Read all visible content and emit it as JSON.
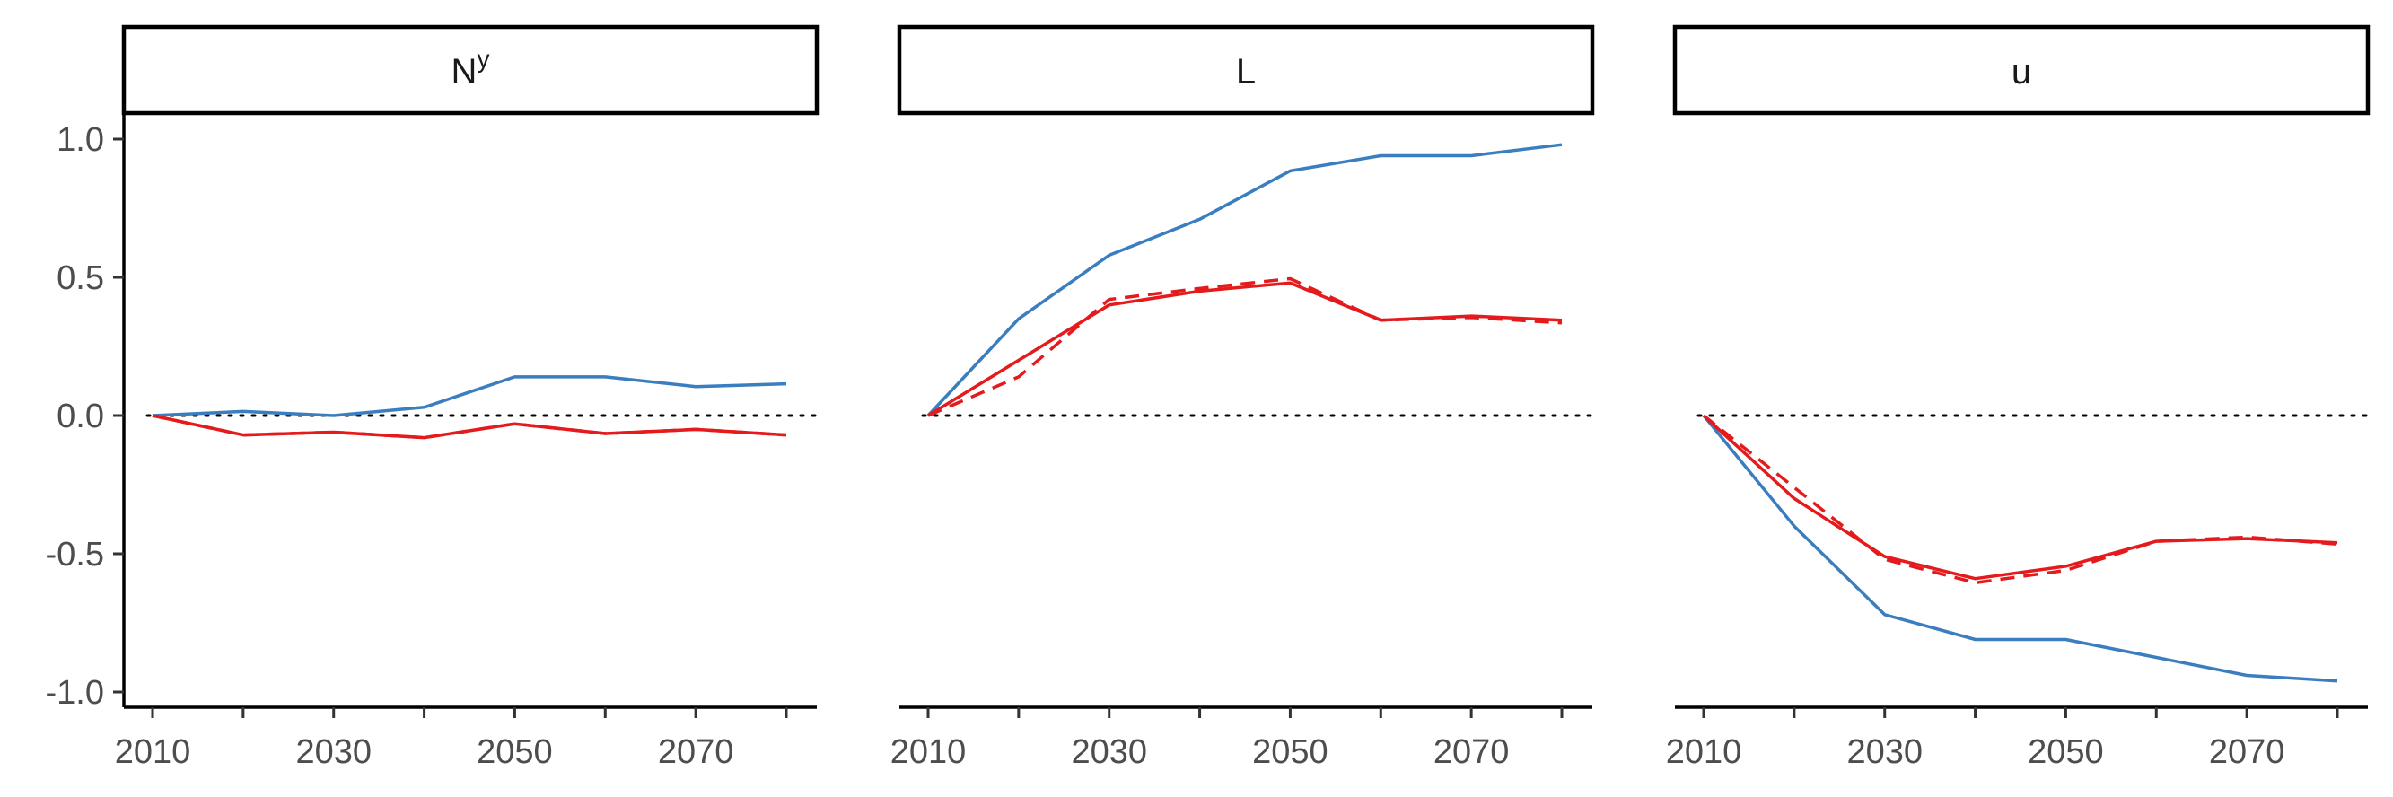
{
  "colors": {
    "blue": "#3a7ebf",
    "red": "#e41a1c"
  },
  "chart_data": {
    "type": "line",
    "title": "",
    "xlabel": "",
    "ylabel": "",
    "ylim": [
      -1.0,
      1.0
    ],
    "xlim": [
      2010,
      2080
    ],
    "y_ticks": [
      {
        "value": 1.0,
        "label": "1.0"
      },
      {
        "value": 0.5,
        "label": "0.5"
      },
      {
        "value": 0.0,
        "label": "0.0"
      },
      {
        "value": -0.5,
        "label": "-0.5"
      },
      {
        "value": -1.0,
        "label": "-1.0"
      }
    ],
    "x_ticks": [
      {
        "value": 2010,
        "label": "2010"
      },
      {
        "value": 2030,
        "label": "2030"
      },
      {
        "value": 2050,
        "label": "2050"
      },
      {
        "value": 2070,
        "label": "2070"
      }
    ],
    "x_minor_ticks": [
      2020,
      2040,
      2060,
      2080
    ],
    "reference_line": {
      "y": 0,
      "style": "dotted"
    },
    "grid": false,
    "legend": "none",
    "x": [
      2010,
      2020,
      2030,
      2040,
      2050,
      2060,
      2070,
      2080
    ],
    "panels": [
      {
        "strip": {
          "main": "N",
          "sup": "y"
        },
        "series": [
          {
            "color": "blue",
            "dash": "solid",
            "values": [
              0.0,
              0.015,
              0.0,
              0.03,
              0.14,
              0.14,
              0.105,
              0.115
            ]
          },
          {
            "color": "red",
            "dash": "solid",
            "values": [
              0.0,
              -0.07,
              -0.06,
              -0.08,
              -0.03,
              -0.065,
              -0.05,
              -0.07
            ]
          },
          {
            "color": "red",
            "dash": "dashed",
            "values": [
              0.0,
              -0.07,
              -0.06,
              -0.08,
              -0.03,
              -0.065,
              -0.05,
              -0.07
            ]
          }
        ]
      },
      {
        "strip": {
          "main": "L",
          "sup": ""
        },
        "series": [
          {
            "color": "blue",
            "dash": "solid",
            "values": [
              0.0,
              0.35,
              0.58,
              0.71,
              0.885,
              0.94,
              0.94,
              0.98
            ]
          },
          {
            "color": "red",
            "dash": "solid",
            "values": [
              0.0,
              0.2,
              0.4,
              0.45,
              0.48,
              0.345,
              0.36,
              0.345
            ]
          },
          {
            "color": "red",
            "dash": "dashed",
            "values": [
              0.0,
              0.14,
              0.42,
              0.46,
              0.495,
              0.345,
              0.355,
              0.335
            ]
          }
        ]
      },
      {
        "strip": {
          "main": "u",
          "sup": ""
        },
        "series": [
          {
            "color": "blue",
            "dash": "solid",
            "values": [
              0.0,
              -0.4,
              -0.72,
              -0.81,
              -0.81,
              -0.875,
              -0.94,
              -0.96
            ]
          },
          {
            "color": "red",
            "dash": "solid",
            "values": [
              0.0,
              -0.3,
              -0.51,
              -0.59,
              -0.545,
              -0.455,
              -0.445,
              -0.46
            ]
          },
          {
            "color": "red",
            "dash": "dashed",
            "values": [
              0.0,
              -0.26,
              -0.52,
              -0.605,
              -0.56,
              -0.455,
              -0.44,
              -0.465
            ]
          }
        ]
      }
    ]
  }
}
